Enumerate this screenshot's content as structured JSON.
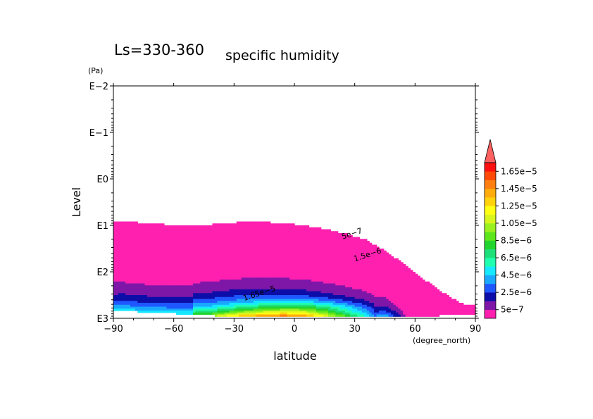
{
  "chart_data": {
    "type": "contour",
    "title": "Ls=330-360",
    "subtitle": "specific humidity",
    "xlabel": "latitude",
    "xunit": "(degree_north)",
    "ylabel": "Level",
    "yunit": "(Pa)",
    "xlim": [
      -90,
      90
    ],
    "ylim": [
      0.01,
      1000
    ],
    "yscale": "log",
    "xticks": [
      -90,
      -60,
      -30,
      0,
      30,
      60,
      90
    ],
    "xtick_labels": [
      "−90",
      "−60",
      "−30",
      "0",
      "30",
      "60",
      "90"
    ],
    "yticks": [
      0.01,
      0.1,
      1,
      10,
      100,
      1000
    ],
    "ytick_labels": [
      "E−2",
      "E−1",
      "E0",
      "E1",
      "E2",
      "E3"
    ],
    "levels": [
      5e-07,
      1.5e-06,
      2.5e-06,
      3.5e-06,
      4.5e-06,
      5.5e-06,
      6.5e-06,
      7.5e-06,
      8.5e-06,
      9.5e-06,
      1.05e-05,
      1.15e-05,
      1.25e-05,
      1.35e-05,
      1.45e-05,
      1.55e-05,
      1.65e-05
    ],
    "colorbar": {
      "labels": [
        "5e−7",
        "2.5e−6",
        "4.5e−6",
        "6.5e−6",
        "8.5e−6",
        "1.05e−5",
        "1.25e−5",
        "1.45e−5",
        "1.65e−5"
      ],
      "colors": [
        "#ff20b0",
        "#7e16a8",
        "#0d0da8",
        "#1f57ff",
        "#1aa8ff",
        "#15e8ff",
        "#20ffb0",
        "#1ee07a",
        "#22d42e",
        "#5ee61c",
        "#9bf020",
        "#d9f51e",
        "#ffff14",
        "#ffd20c",
        "#ffac0c",
        "#ff7f10",
        "#ff4a08",
        "#ff1010"
      ],
      "extend_color": "#ff6060"
    },
    "contour_labels": [
      "5e−7",
      "1.5e−6",
      "1.65e−5"
    ],
    "fields": {
      "lat": [
        -85,
        -75,
        -65,
        -55,
        -45,
        -35,
        -25,
        -15,
        -5,
        5,
        15,
        25,
        35,
        45,
        55,
        65,
        75,
        85
      ],
      "top_pressure": [
        8,
        9,
        9.5,
        10,
        10,
        9,
        8.5,
        8.5,
        9,
        10,
        12,
        15,
        20,
        35,
        70,
        150,
        300,
        520
      ],
      "surface_pressure": [
        700,
        720,
        760,
        800,
        850,
        880,
        880,
        880,
        880,
        880,
        880,
        880,
        880,
        880,
        880,
        880,
        860,
        820
      ]
    }
  }
}
